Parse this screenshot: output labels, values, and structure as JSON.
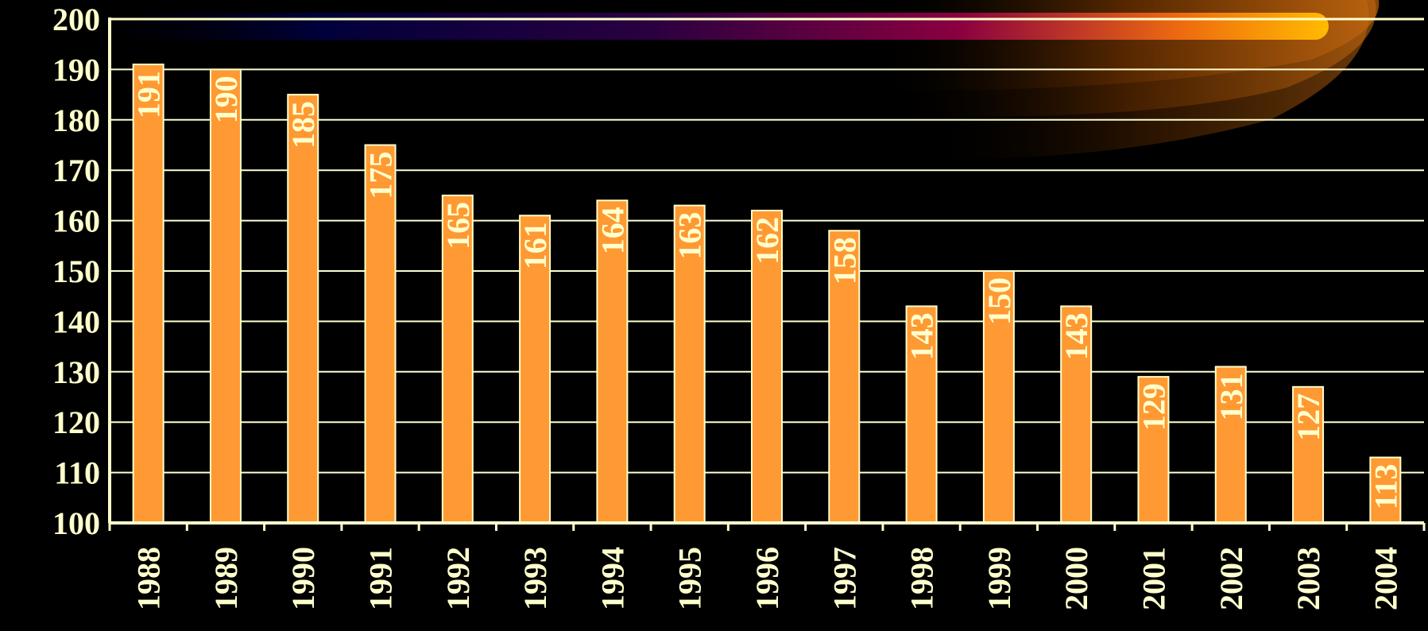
{
  "chart_data": {
    "type": "bar",
    "categories": [
      "1988",
      "1989",
      "1990",
      "1991",
      "1992",
      "1993",
      "1994",
      "1995",
      "1996",
      "1997",
      "1998",
      "1999",
      "2000",
      "2001",
      "2002",
      "2003",
      "2004"
    ],
    "values": [
      191,
      190,
      185,
      175,
      165,
      161,
      164,
      163,
      162,
      158,
      143,
      150,
      143,
      129,
      131,
      127,
      113
    ],
    "data_labels": [
      "191",
      "190",
      "185",
      "175",
      "165",
      "161",
      "164",
      "163",
      "162",
      "158",
      "143",
      "150",
      "143",
      "129",
      "131",
      "127",
      "113"
    ],
    "y_ticks": [
      "100",
      "110",
      "120",
      "130",
      "140",
      "150",
      "160",
      "170",
      "180",
      "190",
      "200"
    ],
    "ylim": [
      100,
      200
    ],
    "grid": true,
    "legend": "none",
    "title": "",
    "xlabel": "",
    "ylabel": "",
    "colors": {
      "background": "#000000",
      "bar": "#FF9933",
      "bar_outline": "#FFFFCC",
      "axis": "#FFFFCC",
      "grid": "#FFFFCC",
      "text": "#FFFFCC"
    }
  }
}
